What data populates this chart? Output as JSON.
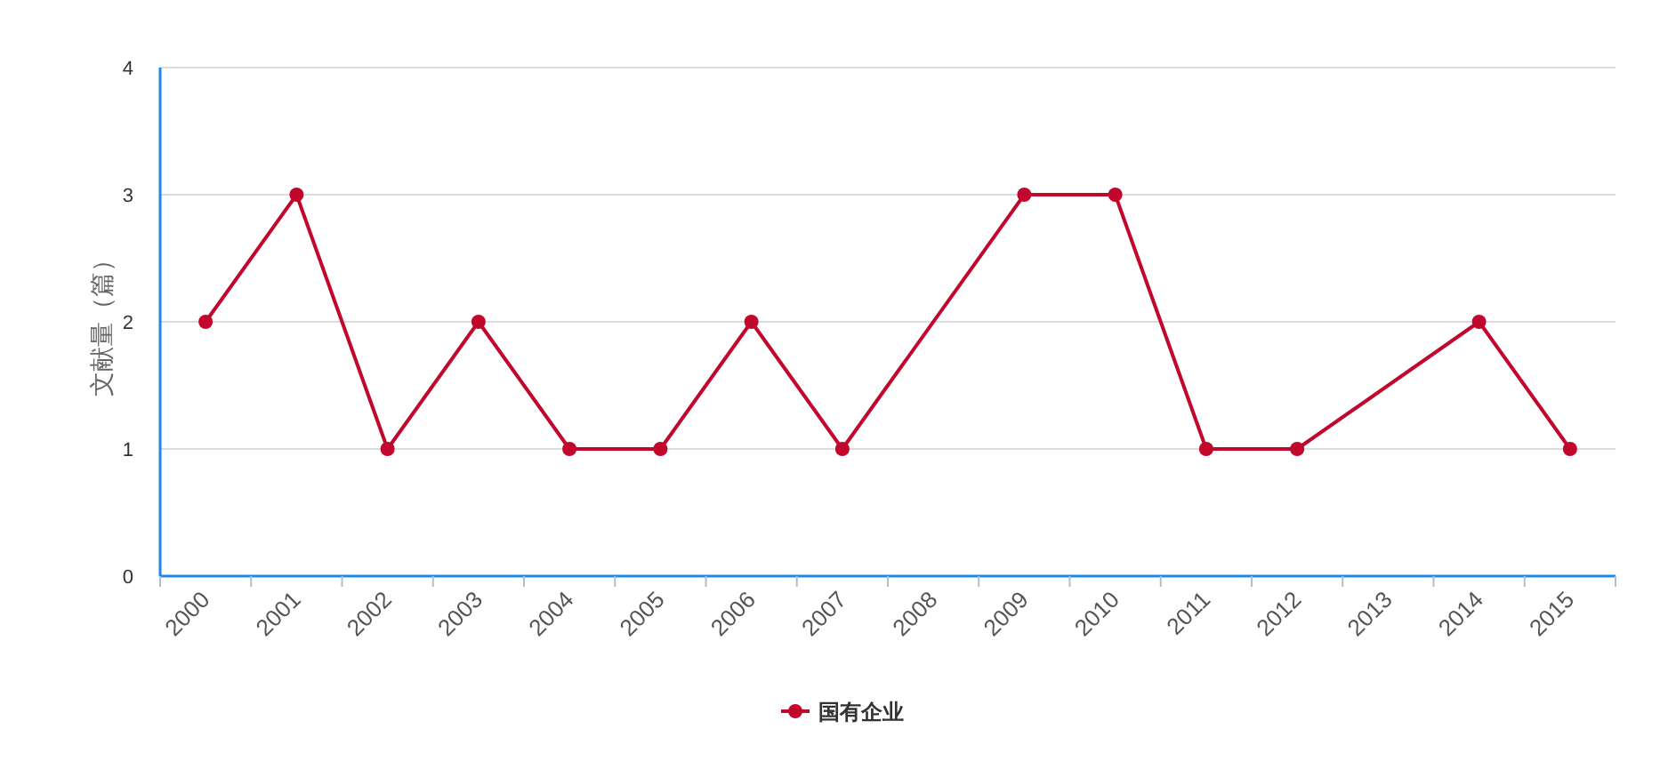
{
  "chart_data": {
    "type": "line",
    "ylabel": "文献量（篇）",
    "categories": [
      "2000",
      "2001",
      "2002",
      "2003",
      "2004",
      "2005",
      "2006",
      "2007",
      "2008",
      "2009",
      "2010",
      "2011",
      "2012",
      "2013",
      "2014",
      "2015"
    ],
    "series": [
      {
        "name": "国有企业",
        "color": "#c1072b",
        "values": [
          2,
          3,
          1,
          2,
          1,
          1,
          2,
          1,
          null,
          3,
          3,
          1,
          1,
          null,
          2,
          1
        ]
      }
    ],
    "ylim": [
      0,
      4
    ],
    "yticks": [
      0,
      1,
      2,
      3,
      4
    ],
    "grid": "y",
    "legend": "bottom",
    "marker": "circle",
    "line_style": "solid"
  }
}
